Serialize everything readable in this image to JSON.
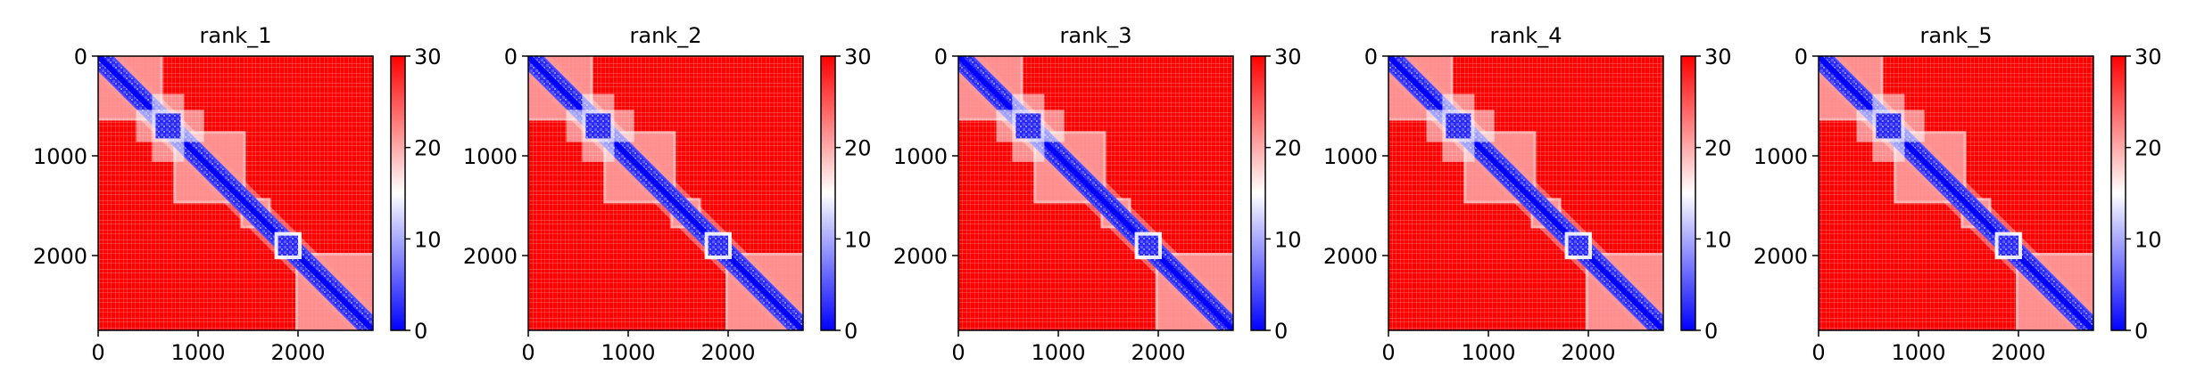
{
  "chart_data": [
    {
      "type": "heatmap",
      "title": "rank_1",
      "n": 2750,
      "xticks": [
        0,
        1000,
        2000
      ],
      "yticks": [
        0,
        1000,
        2000
      ],
      "colorbar": {
        "min": 0,
        "max": 30,
        "ticks": [
          0,
          10,
          20,
          30
        ],
        "cmap": "bwr"
      },
      "domains": [
        [
          0,
          620
        ],
        [
          620,
          780
        ],
        [
          780,
          1450
        ],
        [
          1450,
          1700
        ],
        [
          1700,
          1800
        ],
        [
          1800,
          2000
        ],
        [
          2000,
          2750
        ]
      ]
    },
    {
      "type": "heatmap",
      "title": "rank_2",
      "n": 2750,
      "xticks": [
        0,
        1000,
        2000
      ],
      "yticks": [
        0,
        1000,
        2000
      ],
      "colorbar": {
        "min": 0,
        "max": 30,
        "ticks": [
          0,
          10,
          20,
          30
        ],
        "cmap": "bwr"
      },
      "domains": [
        [
          0,
          620
        ],
        [
          620,
          780
        ],
        [
          780,
          1450
        ],
        [
          1450,
          1700
        ],
        [
          1700,
          1800
        ],
        [
          1800,
          2000
        ],
        [
          2000,
          2750
        ]
      ]
    },
    {
      "type": "heatmap",
      "title": "rank_3",
      "n": 2750,
      "xticks": [
        0,
        1000,
        2000
      ],
      "yticks": [
        0,
        1000,
        2000
      ],
      "colorbar": {
        "min": 0,
        "max": 30,
        "ticks": [
          0,
          10,
          20,
          30
        ],
        "cmap": "bwr"
      },
      "domains": [
        [
          0,
          620
        ],
        [
          620,
          780
        ],
        [
          780,
          1450
        ],
        [
          1450,
          1700
        ],
        [
          1700,
          1800
        ],
        [
          1800,
          2000
        ],
        [
          2000,
          2750
        ]
      ]
    },
    {
      "type": "heatmap",
      "title": "rank_4",
      "n": 2750,
      "xticks": [
        0,
        1000,
        2000
      ],
      "yticks": [
        0,
        1000,
        2000
      ],
      "colorbar": {
        "min": 0,
        "max": 30,
        "ticks": [
          0,
          10,
          20,
          30
        ],
        "cmap": "bwr"
      },
      "domains": [
        [
          0,
          620
        ],
        [
          620,
          780
        ],
        [
          780,
          1450
        ],
        [
          1450,
          1700
        ],
        [
          1700,
          1800
        ],
        [
          1800,
          2000
        ],
        [
          2000,
          2750
        ]
      ]
    },
    {
      "type": "heatmap",
      "title": "rank_5",
      "n": 2750,
      "xticks": [
        0,
        1000,
        2000
      ],
      "yticks": [
        0,
        1000,
        2000
      ],
      "colorbar": {
        "min": 0,
        "max": 30,
        "ticks": [
          0,
          10,
          20,
          30
        ],
        "cmap": "bwr"
      },
      "domains": [
        [
          0,
          620
        ],
        [
          620,
          780
        ],
        [
          780,
          1450
        ],
        [
          1450,
          1700
        ],
        [
          1700,
          1800
        ],
        [
          1800,
          2000
        ],
        [
          2000,
          2750
        ]
      ]
    }
  ]
}
